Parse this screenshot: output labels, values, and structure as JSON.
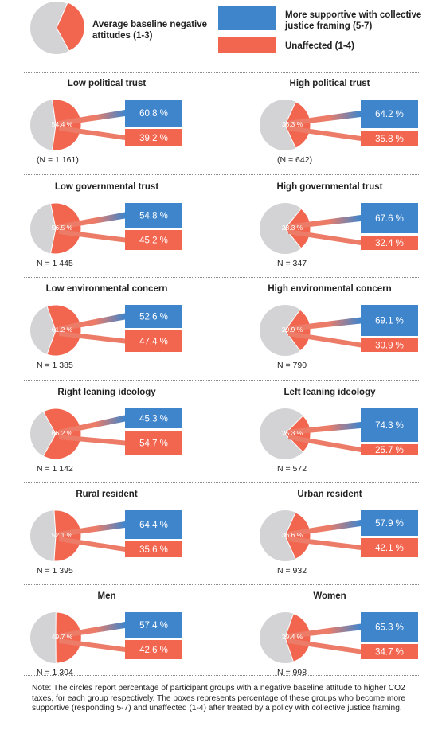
{
  "legend": {
    "pie_label": "Average baseline negative attitudes (1-3)",
    "supportive_label": "More supportive with collective justice framing (5-7)",
    "unaffected_label": "Unaffected (1-4)"
  },
  "colors": {
    "blue": "#3f85cc",
    "red": "#f26650",
    "grey": "#d3d3d6",
    "ribbon_red": "#ec7c68"
  },
  "chart_data": {
    "type": "pie",
    "groups": [
      {
        "title": "Low political trust",
        "n_label": "(N = 1 161)",
        "pie_value": 54.4,
        "pie_label": "54.4 %",
        "supportive": 60.8,
        "supportive_label": "60.8 %",
        "unaffected": 39.2,
        "unaffected_label": "39.2 %"
      },
      {
        "title": "High political trust",
        "n_label": "(N = 642)",
        "pie_value": 36.3,
        "pie_label": "36.3 %",
        "supportive": 64.2,
        "supportive_label": "64.2 %",
        "unaffected": 35.8,
        "unaffected_label": "35.8 %"
      },
      {
        "title": "Low governmental trust",
        "n_label": "N = 1 445",
        "pie_value": 56.5,
        "pie_label": "56.5 %",
        "supportive": 54.8,
        "supportive_label": "54.8 %",
        "unaffected": 45.2,
        "unaffected_label": "45,2 %"
      },
      {
        "title": "High governmental trust",
        "n_label": "N = 347",
        "pie_value": 28.3,
        "pie_label": "28.3 %",
        "supportive": 67.6,
        "supportive_label": "67.6 %",
        "unaffected": 32.4,
        "unaffected_label": "32.4 %"
      },
      {
        "title": "Low environmental concern",
        "n_label": "N = 1 385",
        "pie_value": 61.2,
        "pie_label": "61.2 %",
        "supportive": 52.6,
        "supportive_label": "52.6 %",
        "unaffected": 47.4,
        "unaffected_label": "47.4 %"
      },
      {
        "title": "High environmental concern",
        "n_label": "N = 790",
        "pie_value": 29.9,
        "pie_label": "29.9 %",
        "supportive": 69.1,
        "supportive_label": "69.1 %",
        "unaffected": 30.9,
        "unaffected_label": "30.9 %"
      },
      {
        "title": "Right leaning ideology",
        "n_label": "N = 1 142",
        "pie_value": 66.2,
        "pie_label": "66.2 %",
        "supportive": 45.3,
        "supportive_label": "45.3 %",
        "unaffected": 54.7,
        "unaffected_label": "54.7 %"
      },
      {
        "title": "Left leaning ideology",
        "n_label": "N = 572",
        "pie_value": 25.3,
        "pie_label": "25.3 %",
        "supportive": 74.3,
        "supportive_label": "74.3 %",
        "unaffected": 25.7,
        "unaffected_label": "25.7 %"
      },
      {
        "title": "Rural resident",
        "n_label": "N = 1 395",
        "pie_value": 52.1,
        "pie_label": "52.1 %",
        "supportive": 64.4,
        "supportive_label": "64.4 %",
        "unaffected": 35.6,
        "unaffected_label": "35.6 %"
      },
      {
        "title": "Urban resident",
        "n_label": "N = 932",
        "pie_value": 36.6,
        "pie_label": "36.6 %",
        "supportive": 57.9,
        "supportive_label": "57.9 %",
        "unaffected": 42.1,
        "unaffected_label": "42.1 %"
      },
      {
        "title": "Men",
        "n_label": "N = 1 304",
        "pie_value": 49.7,
        "pie_label": "49.7 %",
        "supportive": 57.4,
        "supportive_label": "57.4 %",
        "unaffected": 42.6,
        "unaffected_label": "42.6 %"
      },
      {
        "title": "Women",
        "n_label": "N = 998",
        "pie_value": 39.4,
        "pie_label": "39.4 %",
        "supportive": 65.3,
        "supportive_label": "65.3 %",
        "unaffected": 34.7,
        "unaffected_label": "34.7 %"
      }
    ]
  },
  "note": "Note: The circles report percentage of participant groups with a negative baseline attitude to higher CO2 taxes, for each group respectively. The boxes represents percentage of these groups who become more supportive (responding 5-7) and unaffected (1-4) after treated by a policy with collective justice framing."
}
